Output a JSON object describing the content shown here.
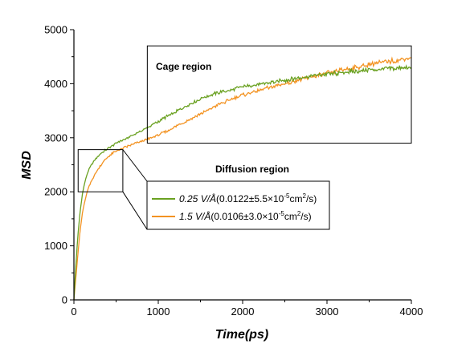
{
  "chart_data": {
    "type": "line",
    "title": "",
    "xlabel": "Time(ps)",
    "ylabel": "MSD",
    "xlim": [
      0,
      4000
    ],
    "ylim": [
      0,
      5000
    ],
    "xticks": [
      "0",
      "1000",
      "2000",
      "3000",
      "4000"
    ],
    "yticks": [
      "0",
      "1000",
      "2000",
      "3000",
      "4000",
      "5000"
    ],
    "grid": false,
    "legend_position": "center-left, below diffusion label",
    "series": [
      {
        "name": "0.25 V/Å(0.0122±5.5×10⁻⁵cm²/s)",
        "legend": {
          "italic": "0.25 V/Å",
          "rest": "(0.0122±5.5×10",
          "exp1": "-5",
          "mid": "cm",
          "exp2": "2",
          "end": "/s)"
        },
        "color": "#6aa121",
        "x": [
          0,
          25,
          50,
          75,
          100,
          125,
          150,
          175,
          200,
          250,
          300,
          350,
          400,
          450,
          500,
          550,
          600,
          650,
          700,
          750,
          800,
          850,
          900,
          950,
          1000,
          1100,
          1200,
          1300,
          1400,
          1500,
          1600,
          1700,
          1800,
          1900,
          2000,
          2200,
          2400,
          2600,
          2800,
          3000,
          3200,
          3400,
          3600,
          3800,
          3900,
          4000
        ],
        "y": [
          0,
          700,
          1250,
          1650,
          1950,
          2150,
          2300,
          2400,
          2480,
          2600,
          2680,
          2750,
          2800,
          2850,
          2900,
          2940,
          2970,
          3010,
          3050,
          3090,
          3130,
          3170,
          3210,
          3260,
          3300,
          3390,
          3470,
          3560,
          3640,
          3720,
          3780,
          3830,
          3860,
          3900,
          3940,
          3990,
          4040,
          4090,
          4140,
          4180,
          4210,
          4240,
          4270,
          4290,
          4300,
          4270
        ]
      },
      {
        "name": "1.5 V/Å(0.0106±3.0×10⁻⁵cm²/s)",
        "legend": {
          "italic": "1.5 V/Å",
          "rest": "(0.0106±3.0×10",
          "exp1": "-5",
          "mid": "cm",
          "exp2": "2",
          "end": "/s)"
        },
        "color": "#f39322",
        "x": [
          0,
          25,
          50,
          75,
          100,
          125,
          150,
          175,
          200,
          250,
          300,
          350,
          400,
          450,
          500,
          550,
          600,
          650,
          700,
          750,
          800,
          850,
          900,
          950,
          1000,
          1100,
          1200,
          1300,
          1400,
          1500,
          1600,
          1700,
          1800,
          1900,
          2000,
          2200,
          2400,
          2600,
          2800,
          3000,
          3200,
          3400,
          3600,
          3800,
          3900,
          4000
        ],
        "y": [
          0,
          450,
          900,
          1300,
          1600,
          1800,
          1950,
          2080,
          2180,
          2330,
          2450,
          2560,
          2640,
          2700,
          2750,
          2790,
          2820,
          2850,
          2880,
          2910,
          2940,
          2960,
          2990,
          3020,
          3050,
          3120,
          3200,
          3280,
          3360,
          3440,
          3520,
          3600,
          3670,
          3730,
          3790,
          3880,
          3960,
          4040,
          4120,
          4190,
          4260,
          4320,
          4380,
          4430,
          4460,
          4480
        ]
      }
    ],
    "annotations": [
      {
        "id": "cage",
        "text": "Cage region",
        "box": {
          "x0": 870,
          "x1": 4000,
          "y0": 2900,
          "y1": 4700
        }
      },
      {
        "id": "diffusion",
        "text": "Diffusion region",
        "box": {
          "x0": 50,
          "x1": 580,
          "y0": 2000,
          "y1": 2780
        }
      }
    ]
  }
}
